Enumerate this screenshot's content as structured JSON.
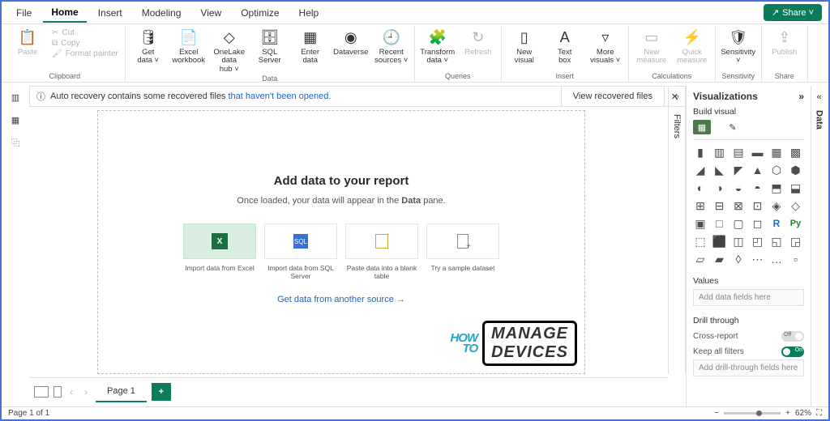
{
  "menu": {
    "items": [
      "File",
      "Home",
      "Insert",
      "Modeling",
      "View",
      "Optimize",
      "Help"
    ],
    "active": 1,
    "share": "Share ˅"
  },
  "ribbon": {
    "clipboard": {
      "paste": "Paste",
      "cut": "Cut",
      "copy": "Copy",
      "fmt": "Format painter",
      "label": "Clipboard"
    },
    "data": {
      "label": "Data",
      "btns": [
        {
          "l1": "Get",
          "l2": "data ˅"
        },
        {
          "l1": "Excel",
          "l2": "workbook"
        },
        {
          "l1": "OneLake data",
          "l2": "hub ˅"
        },
        {
          "l1": "SQL",
          "l2": "Server"
        },
        {
          "l1": "Enter",
          "l2": "data"
        },
        {
          "l1": "Dataverse",
          "l2": ""
        },
        {
          "l1": "Recent",
          "l2": "sources ˅"
        }
      ]
    },
    "queries": {
      "label": "Queries",
      "btns": [
        {
          "l1": "Transform",
          "l2": "data ˅"
        },
        {
          "l1": "Refresh",
          "l2": ""
        }
      ]
    },
    "insert": {
      "label": "Insert",
      "btns": [
        {
          "l1": "New",
          "l2": "visual"
        },
        {
          "l1": "Text",
          "l2": "box"
        },
        {
          "l1": "More",
          "l2": "visuals ˅"
        }
      ]
    },
    "calc": {
      "label": "Calculations",
      "btns": [
        {
          "l1": "New",
          "l2": "measure"
        },
        {
          "l1": "Quick",
          "l2": "measure"
        }
      ]
    },
    "sens": {
      "label": "Sensitivity",
      "btn": {
        "l1": "Sensitivity",
        "l2": "˅"
      }
    },
    "share": {
      "label": "Share",
      "btn": {
        "l1": "Publish",
        "l2": ""
      }
    }
  },
  "notice": {
    "text": "Auto recovery contains some recovered files ",
    "link": "that haven't been opened.",
    "btn": "View recovered files"
  },
  "canvas": {
    "title": "Add data to your report",
    "sub_a": "Once loaded, your data will appear in the ",
    "sub_b": "Data",
    "sub_c": " pane.",
    "cards": [
      {
        "cap": "Import data from Excel"
      },
      {
        "cap": "Import data from SQL Server"
      },
      {
        "cap": "Paste data into a blank table"
      },
      {
        "cap": "Try a sample dataset"
      }
    ],
    "another": "Get data from another source →"
  },
  "filtersLabel": "Filters",
  "viz": {
    "title": "Visualizations",
    "sub": "Build visual",
    "values": "Values",
    "valuesHint": "Add data fields here",
    "drill": "Drill through",
    "cross": "Cross-report",
    "keep": "Keep all filters",
    "drillHint": "Add drill-through fields here",
    "crossState": "Off",
    "keepState": "On"
  },
  "dataLabel": "Data",
  "pages": {
    "tab": "Page 1"
  },
  "status": {
    "page": "Page 1 of 1",
    "zoom": "62%"
  },
  "wm": {
    "a": "HOW",
    "b": "TO",
    "c": "MANAGE",
    "d": "DEVICES"
  }
}
